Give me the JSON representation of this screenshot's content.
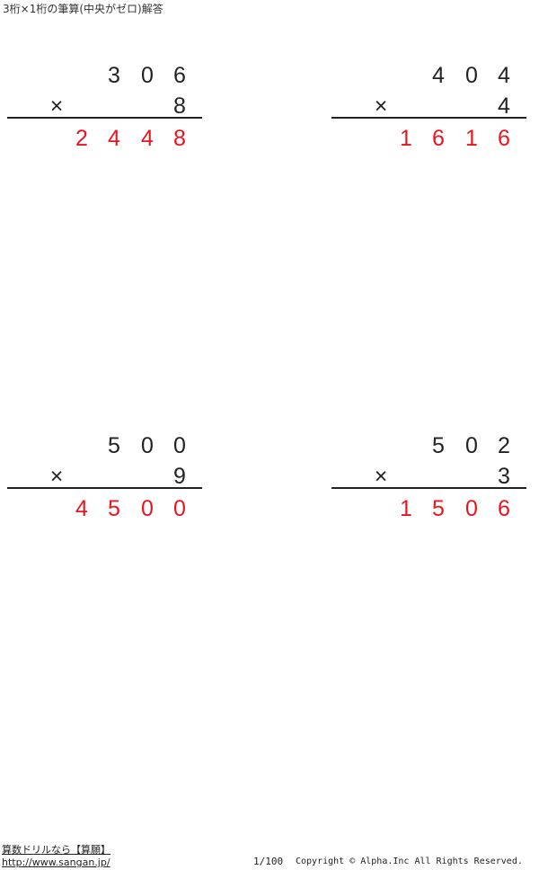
{
  "title": "3桁×1桁の筆算(中央がゼロ)解答",
  "problems": [
    {
      "top": [
        "3",
        "0",
        "6"
      ],
      "op": "×",
      "mult": "8",
      "answer": [
        "2",
        "4",
        "4",
        "8"
      ]
    },
    {
      "top": [
        "4",
        "0",
        "4"
      ],
      "op": "×",
      "mult": "4",
      "answer": [
        "1",
        "6",
        "1",
        "6"
      ]
    },
    {
      "top": [
        "5",
        "0",
        "0"
      ],
      "op": "×",
      "mult": "9",
      "answer": [
        "4",
        "5",
        "0",
        "0"
      ]
    },
    {
      "top": [
        "5",
        "0",
        "2"
      ],
      "op": "×",
      "mult": "3",
      "answer": [
        "1",
        "5",
        "0",
        "6"
      ]
    }
  ],
  "footer": {
    "site_name": "算数ドリルなら【算願】",
    "url": "http://www.sangan.jp/",
    "page": "1/100",
    "copyright": "Copyright © Alpha.Inc All Rights Reserved."
  },
  "colors": {
    "answer": "#e8141e",
    "text": "#222222"
  }
}
